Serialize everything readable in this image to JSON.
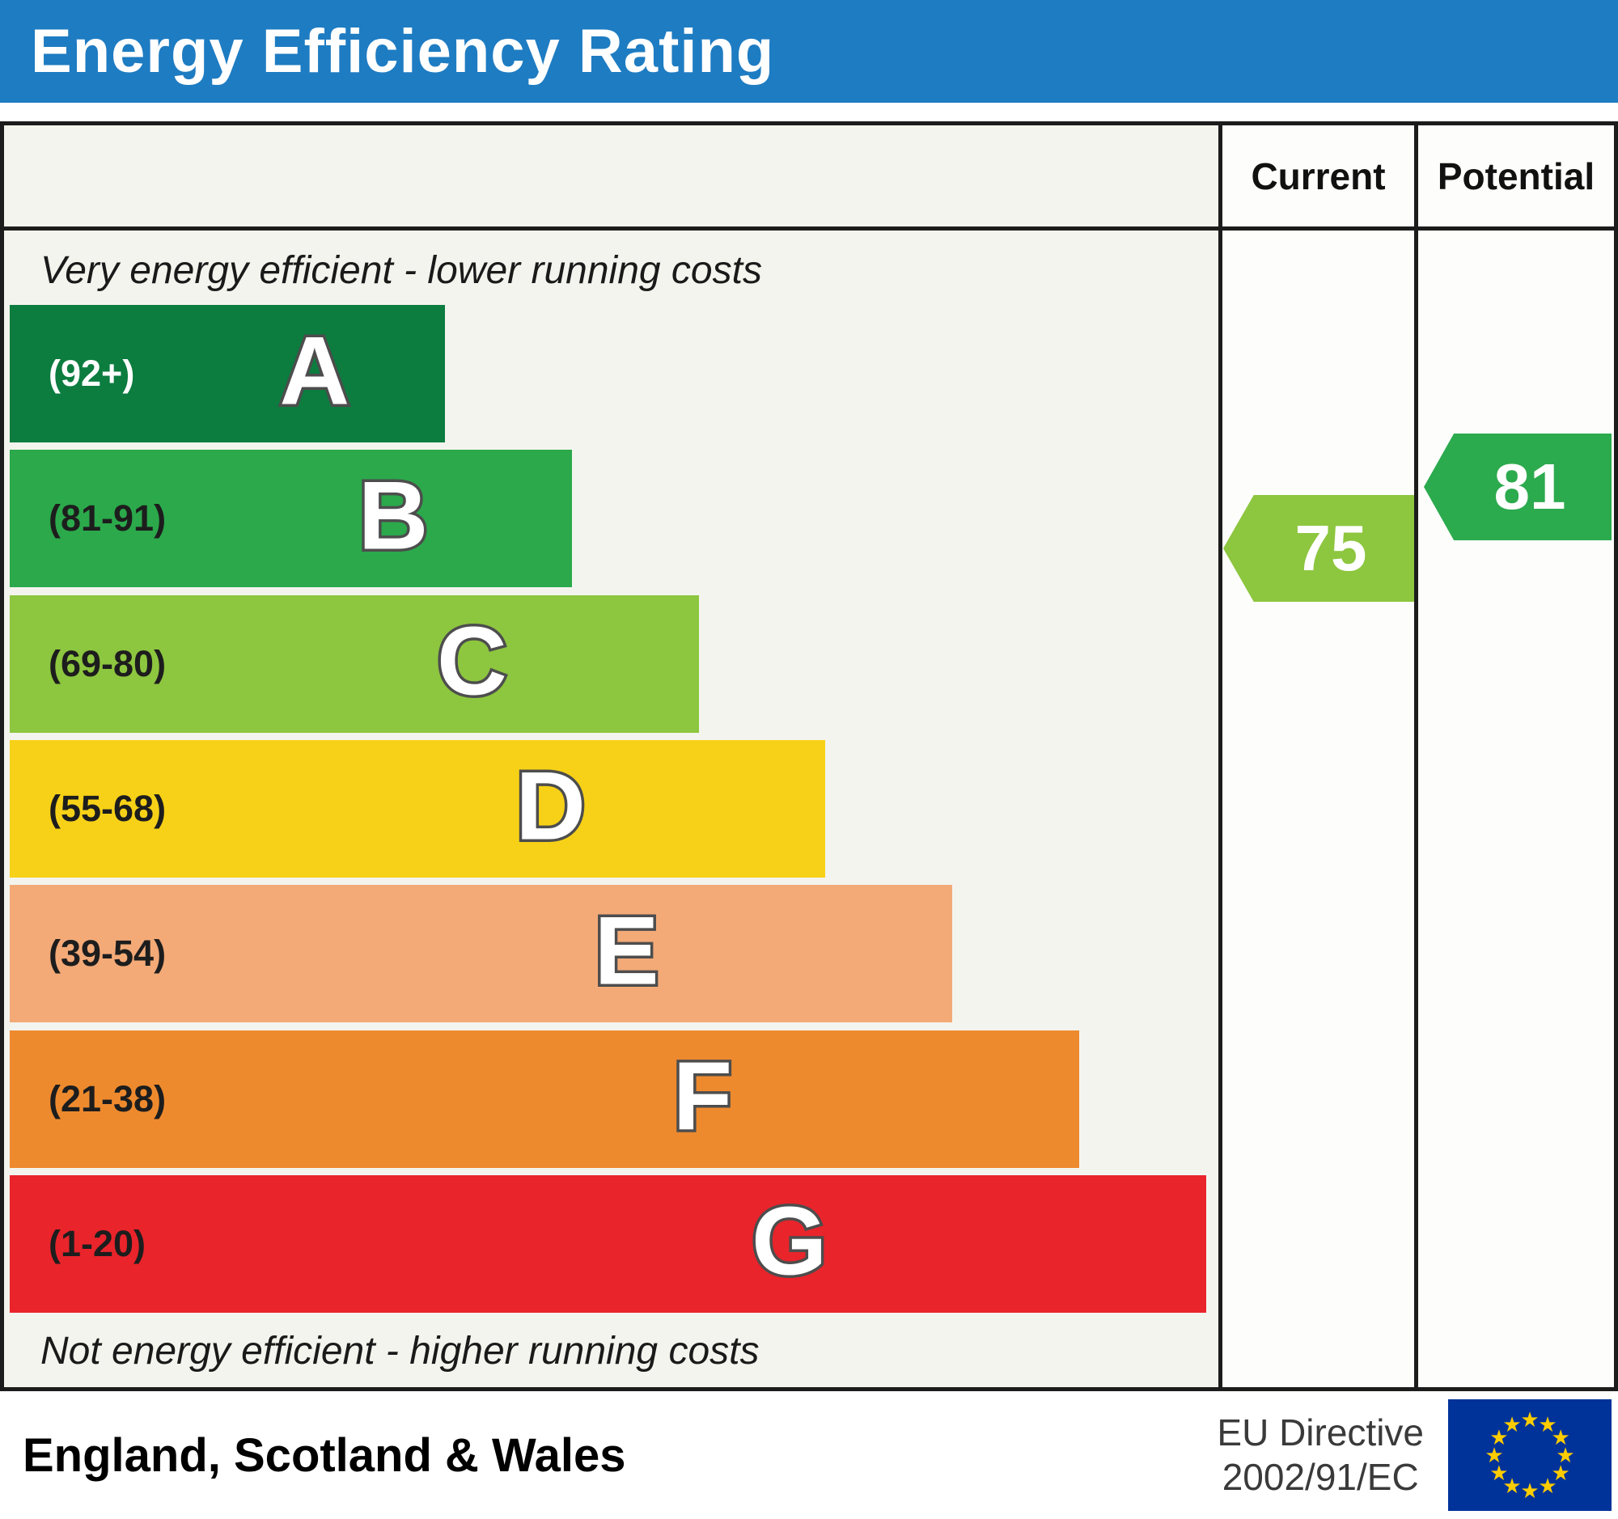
{
  "header": {
    "title": "Energy Efficiency Rating",
    "background_color": "#1e7cc2"
  },
  "table": {
    "column_headers": {
      "current": "Current",
      "potential": "Potential"
    },
    "top_note": "Very energy efficient - lower running costs",
    "bottom_note": "Not energy efficient - higher running costs"
  },
  "ratings": {
    "current": {
      "value": "75",
      "band": "C",
      "color": "#8dc63f"
    },
    "potential": {
      "value": "81",
      "band": "B",
      "color": "#2caa4e"
    }
  },
  "footer": {
    "region": "England, Scotland & Wales",
    "directive_line1": "EU Directive",
    "directive_line2": "2002/91/EC",
    "flag_colors": {
      "field": "#003399",
      "stars": "#ffcc00"
    }
  },
  "chart_data": {
    "type": "bar",
    "title": "Energy Efficiency Rating",
    "categories": [
      "A",
      "B",
      "C",
      "D",
      "E",
      "F",
      "G"
    ],
    "bands": [
      {
        "letter": "A",
        "range_label": "(92+)",
        "range_min": 92,
        "range_max": 100,
        "color": "#0c7c3f",
        "width_pct": 36
      },
      {
        "letter": "B",
        "range_label": "(81-91)",
        "range_min": 81,
        "range_max": 91,
        "color": "#2ba94b",
        "width_pct": 46.5
      },
      {
        "letter": "C",
        "range_label": "(69-80)",
        "range_min": 69,
        "range_max": 80,
        "color": "#8dc63f",
        "width_pct": 57
      },
      {
        "letter": "D",
        "range_label": "(55-68)",
        "range_min": 55,
        "range_max": 68,
        "color": "#f7d117",
        "width_pct": 67.5
      },
      {
        "letter": "E",
        "range_label": "(39-54)",
        "range_min": 39,
        "range_max": 54,
        "color": "#f3aa77",
        "width_pct": 78
      },
      {
        "letter": "F",
        "range_label": "(21-38)",
        "range_min": 21,
        "range_max": 38,
        "color": "#ee8a2e",
        "width_pct": 88.5
      },
      {
        "letter": "G",
        "range_label": "(1-20)",
        "range_min": 1,
        "range_max": 20,
        "color": "#e9242b",
        "width_pct": 99
      }
    ],
    "current_rating": 75,
    "potential_rating": 81,
    "value_range": [
      1,
      100
    ],
    "legend": [
      "Current",
      "Potential"
    ],
    "region_label": "England, Scotland & Wales"
  }
}
